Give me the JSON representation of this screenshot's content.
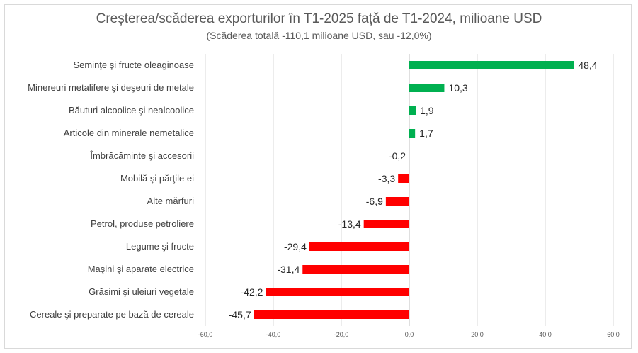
{
  "chart_data": {
    "type": "bar",
    "orientation": "horizontal",
    "title": "Creșterea/scăderea exporturilor în T1-2025 față de T1-2024, milioane USD",
    "subtitle": "(Scăderea totală -110,1 milioane USD, sau -12,0%)",
    "categories": [
      "Seminţe şi fructe oleaginoase",
      "Minereuri metalifere şi deşeuri de metale",
      "Băuturi alcoolice şi nealcoolice",
      "Articole din minerale nemetalice",
      "Îmbrăcăminte şi accesorii",
      "Mobilă şi părţile ei",
      "Alte mărfuri",
      "Petrol, produse petroliere",
      "Legume şi fructe",
      "Maşini şi aparate electrice",
      "Grăsimi şi uleiuri vegetale",
      "Cereale şi preparate pe bază de cereale"
    ],
    "values": [
      48.4,
      10.3,
      1.9,
      1.7,
      -0.2,
      -3.3,
      -6.9,
      -13.4,
      -29.4,
      -31.4,
      -42.2,
      -45.7
    ],
    "value_labels": [
      "48,4",
      "10,3",
      "1,9",
      "1,7",
      "-0,2",
      "-3,3",
      "-6,9",
      "-13,4",
      "-29,4",
      "-31,4",
      "-42,2",
      "-45,7"
    ],
    "xlim": [
      -60,
      60
    ],
    "xticks": [
      -60,
      -40,
      -20,
      0,
      20,
      40,
      60
    ],
    "xtick_labels": [
      "-60,0",
      "-40,0",
      "-20,0",
      "0,0",
      "20,0",
      "40,0",
      "60,0"
    ],
    "grid": "vertical",
    "colors": {
      "positive": "#00b050",
      "negative": "#ff0000",
      "grid": "#d9d9d9",
      "axis": "#bfbfbf"
    }
  }
}
